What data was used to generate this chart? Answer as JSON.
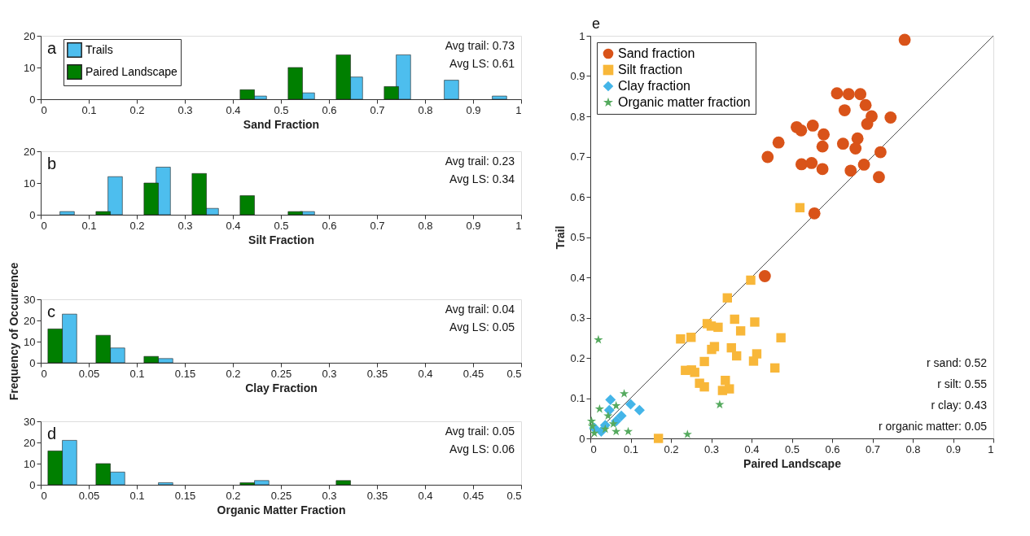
{
  "chart_data": [
    {
      "type": "bar",
      "xlabel": "Sand Fraction",
      "xlim": [
        0,
        1
      ],
      "xticks": [
        0,
        0.1,
        0.2,
        0.3,
        0.4,
        0.5,
        0.6,
        0.7,
        0.8,
        0.9,
        1
      ],
      "ylim": [
        0,
        20
      ],
      "yticks": [
        0,
        10,
        20
      ],
      "legend": "top left",
      "annotations": [
        "a",
        "Avg trail: 0.73",
        "Avg LS: 0.61"
      ],
      "series": [
        {
          "name": "Trails",
          "color": "#4dbeee",
          "x": [
            0.455,
            0.555,
            0.655,
            0.755,
            0.855,
            0.955
          ],
          "values": [
            1,
            2,
            7,
            14,
            6,
            1
          ]
        },
        {
          "name": "Paired Landscape",
          "color": "#007f00",
          "x": [
            0.43,
            0.53,
            0.63,
            0.73
          ],
          "values": [
            3,
            10,
            14,
            4
          ]
        }
      ]
    },
    {
      "type": "bar",
      "xlabel": "Silt Fraction",
      "xlim": [
        0,
        1
      ],
      "xticks": [
        0,
        0.1,
        0.2,
        0.3,
        0.4,
        0.5,
        0.6,
        0.7,
        0.8,
        0.9,
        1
      ],
      "ylim": [
        0,
        20
      ],
      "yticks": [
        0,
        10,
        20
      ],
      "annotations": [
        "b",
        "Avg trail: 0.23",
        "Avg LS: 0.34"
      ],
      "series": [
        {
          "color": "#4dbeee",
          "x": [
            0.055,
            0.155,
            0.255,
            0.355,
            0.555
          ],
          "values": [
            1,
            12,
            15,
            2,
            1
          ]
        },
        {
          "color": "#007f00",
          "x": [
            0.13,
            0.23,
            0.33,
            0.43,
            0.53
          ],
          "values": [
            1,
            10,
            13,
            6,
            1
          ]
        }
      ]
    },
    {
      "type": "bar",
      "xlabel": "Clay Fraction",
      "ylabel": "Frequency of Occurrence",
      "xlim": [
        0,
        0.5
      ],
      "xticks": [
        0,
        0.05,
        0.1,
        0.15,
        0.2,
        0.25,
        0.3,
        0.35,
        0.4,
        0.45,
        0.5
      ],
      "ylim": [
        0,
        30
      ],
      "yticks": [
        0,
        10,
        20,
        30
      ],
      "annotations": [
        "c",
        "Avg trail: 0.04",
        "Avg LS: 0.05"
      ],
      "series": [
        {
          "color": "#4dbeee",
          "x": [
            0.03,
            0.08,
            0.13
          ],
          "values": [
            23,
            7,
            2
          ]
        },
        {
          "color": "#007f00",
          "x": [
            0.015,
            0.065,
            0.115
          ],
          "values": [
            16,
            13,
            3
          ]
        }
      ]
    },
    {
      "type": "bar",
      "xlabel": "Organic Matter Fraction",
      "xlim": [
        0,
        0.5
      ],
      "xticks": [
        0,
        0.05,
        0.1,
        0.15,
        0.2,
        0.25,
        0.3,
        0.35,
        0.4,
        0.45,
        0.5
      ],
      "ylim": [
        0,
        30
      ],
      "yticks": [
        0,
        10,
        20,
        30
      ],
      "annotations": [
        "d",
        "Avg trail: 0.05",
        "Avg LS: 0.06"
      ],
      "series": [
        {
          "color": "#4dbeee",
          "x": [
            0.03,
            0.08,
            0.13,
            0.23
          ],
          "values": [
            21,
            6,
            1,
            2
          ]
        },
        {
          "color": "#007f00",
          "x": [
            0.015,
            0.065,
            0.215,
            0.315
          ],
          "values": [
            16,
            10,
            1,
            2
          ]
        }
      ]
    },
    {
      "type": "scatter",
      "xlabel": "Paired Landscape",
      "ylabel": "Trail",
      "xlim": [
        0,
        1
      ],
      "ylim": [
        0,
        1
      ],
      "xticks": [
        0,
        0.1,
        0.2,
        0.3,
        0.4,
        0.5,
        0.6,
        0.7,
        0.8,
        0.9,
        1
      ],
      "yticks": [
        0,
        0.1,
        0.2,
        0.3,
        0.4,
        0.5,
        0.6,
        0.7,
        0.8,
        0.9,
        1
      ],
      "legend": "top left",
      "annotations": [
        "e",
        "r sand: 0.52",
        "r silt: 0.55",
        "r clay: 0.43",
        "r organic matter: 0.05"
      ],
      "series": [
        {
          "name": "Sand fraction",
          "color": "#d95319",
          "marker": "circle",
          "x": [
            0.78,
            0.612,
            0.641,
            0.67,
            0.683,
            0.631,
            0.698,
            0.745,
            0.687,
            0.512,
            0.523,
            0.552,
            0.579,
            0.467,
            0.663,
            0.627,
            0.576,
            0.658,
            0.72,
            0.44,
            0.524,
            0.549,
            0.576,
            0.646,
            0.679,
            0.716,
            0.556,
            0.433
          ],
          "values": [
            0.99,
            0.857,
            0.855,
            0.855,
            0.828,
            0.815,
            0.8,
            0.797,
            0.781,
            0.773,
            0.765,
            0.777,
            0.755,
            0.735,
            0.745,
            0.732,
            0.725,
            0.72,
            0.711,
            0.699,
            0.681,
            0.684,
            0.669,
            0.665,
            0.68,
            0.649,
            0.559,
            0.403
          ]
        },
        {
          "name": "Silt fraction",
          "color": "#f8b739",
          "marker": "square",
          "x": [
            0.52,
            0.398,
            0.34,
            0.358,
            0.408,
            0.29,
            0.3,
            0.317,
            0.373,
            0.473,
            0.224,
            0.25,
            0.308,
            0.301,
            0.35,
            0.363,
            0.413,
            0.405,
            0.283,
            0.458,
            0.236,
            0.251,
            0.259,
            0.271,
            0.283,
            0.335,
            0.328,
            0.345,
            0.169
          ],
          "values": [
            0.573,
            0.393,
            0.349,
            0.296,
            0.289,
            0.285,
            0.279,
            0.276,
            0.267,
            0.25,
            0.247,
            0.251,
            0.228,
            0.221,
            0.225,
            0.205,
            0.21,
            0.192,
            0.191,
            0.175,
            0.169,
            0.17,
            0.164,
            0.137,
            0.128,
            0.144,
            0.119,
            0.123,
            0.0
          ]
        },
        {
          "name": "Clay fraction",
          "color": "#44b5e8",
          "marker": "diamond",
          "x": [
            0.05,
            0.1,
            0.122,
            0.077,
            0.064,
            0.037,
            0.027,
            0.01,
            0.047
          ],
          "values": [
            0.096,
            0.085,
            0.07,
            0.056,
            0.043,
            0.033,
            0.017,
            0.026,
            0.07
          ]
        },
        {
          "name": "Organic matter fraction",
          "color": "#55aa5e",
          "marker": "star",
          "x": [
            0.02,
            0.084,
            0.321,
            0.241,
            0.094,
            0.064,
            0.023,
            0.003,
            0.005,
            0.064,
            0.037,
            0.057,
            0.01,
            0.044
          ],
          "values": [
            0.245,
            0.111,
            0.084,
            0.01,
            0.017,
            0.081,
            0.073,
            0.043,
            0.03,
            0.017,
            0.023,
            0.036,
            0.013,
            0.056
          ]
        },
        {
          "type": "line",
          "color": "#505050",
          "line_style": "solid",
          "x": [
            0,
            1
          ],
          "values": [
            0,
            1
          ]
        }
      ]
    }
  ]
}
